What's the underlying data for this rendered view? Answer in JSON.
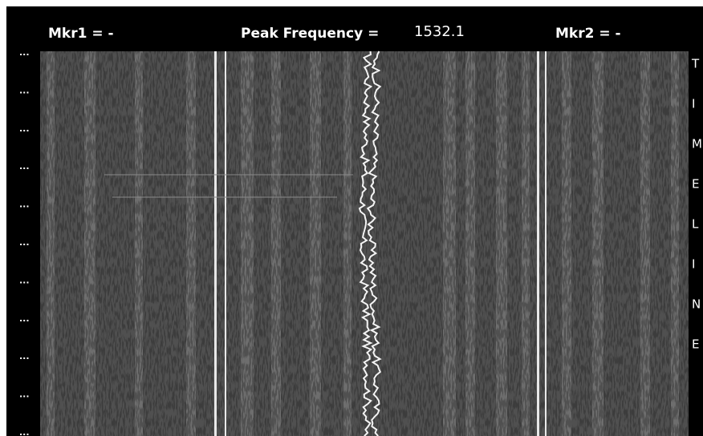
{
  "header": {
    "marker1": "Mkr1 = -",
    "peak_label": "Peak Frequency =",
    "peak_value": "1532.1",
    "marker2": "Mkr2 = -"
  },
  "side_label": [
    "T",
    "I",
    "M",
    "E",
    "L",
    "I",
    "N",
    "E"
  ],
  "row_markers": [
    "...",
    "...",
    "...",
    "...",
    "...",
    "...",
    "...",
    "...",
    "...",
    "...",
    "..."
  ]
}
